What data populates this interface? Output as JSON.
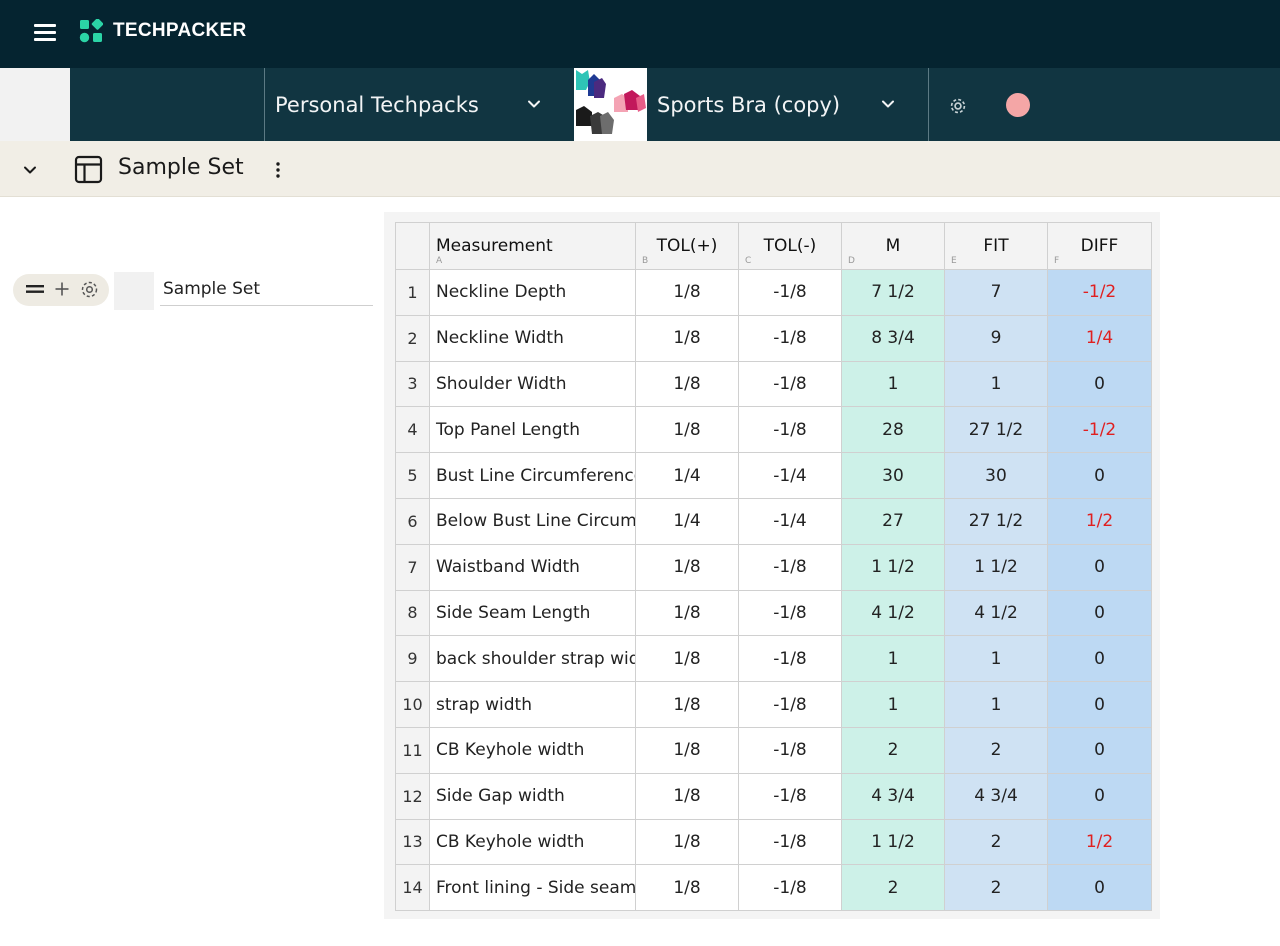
{
  "app": {
    "brand": "TECHPACKER"
  },
  "breadcrumb": {
    "workspace": "Personal Techpacks",
    "product": "Sports Bra (copy)"
  },
  "section": {
    "title": "Sample Set"
  },
  "toolbar": {
    "sample_name": "Sample Set"
  },
  "colors": {
    "topbar": "#052430",
    "subbar": "#113541",
    "accent": "#2bd4a6",
    "m_col": "#cdf1e8",
    "fit_col": "#cfe2f3",
    "diff_col": "#bdd9f3",
    "diff_alert": "#e02020",
    "avatar": "#f4a6a6"
  },
  "table": {
    "headers": [
      {
        "label": "Measurement",
        "letter": "A"
      },
      {
        "label": "TOL(+)",
        "letter": "B"
      },
      {
        "label": "TOL(-)",
        "letter": "C"
      },
      {
        "label": "M",
        "letter": "D"
      },
      {
        "label": "FIT",
        "letter": "E"
      },
      {
        "label": "DIFF",
        "letter": "F"
      }
    ],
    "rows": [
      {
        "idx": "1",
        "name": "Neckline Depth",
        "tol_plus": "1/8",
        "tol_minus": "-1/8",
        "m": "7 1/2",
        "fit": "7",
        "diff": "-1/2",
        "alert": true
      },
      {
        "idx": "2",
        "name": "Neckline Width",
        "tol_plus": "1/8",
        "tol_minus": "-1/8",
        "m": "8 3/4",
        "fit": "9",
        "diff": "1/4",
        "alert": true
      },
      {
        "idx": "3",
        "name": "Shoulder Width",
        "tol_plus": "1/8",
        "tol_minus": "-1/8",
        "m": "1",
        "fit": "1",
        "diff": "0",
        "alert": false
      },
      {
        "idx": "4",
        "name": "Top Panel Length",
        "tol_plus": "1/8",
        "tol_minus": "-1/8",
        "m": "28",
        "fit": "27 1/2",
        "diff": "-1/2",
        "alert": true
      },
      {
        "idx": "5",
        "name": "Bust Line Circumference",
        "tol_plus": "1/4",
        "tol_minus": "-1/4",
        "m": "30",
        "fit": "30",
        "diff": "0",
        "alert": false
      },
      {
        "idx": "6",
        "name": "Below Bust Line Circumference",
        "tol_plus": "1/4",
        "tol_minus": "-1/4",
        "m": "27",
        "fit": "27 1/2",
        "diff": "1/2",
        "alert": true
      },
      {
        "idx": "7",
        "name": "Waistband Width",
        "tol_plus": "1/8",
        "tol_minus": "-1/8",
        "m": "1 1/2",
        "fit": "1 1/2",
        "diff": "0",
        "alert": false
      },
      {
        "idx": "8",
        "name": "Side Seam Length",
        "tol_plus": "1/8",
        "tol_minus": "-1/8",
        "m": "4 1/2",
        "fit": "4 1/2",
        "diff": "0",
        "alert": false
      },
      {
        "idx": "9",
        "name": "back shoulder strap width",
        "tol_plus": "1/8",
        "tol_minus": "-1/8",
        "m": "1",
        "fit": "1",
        "diff": "0",
        "alert": false
      },
      {
        "idx": "10",
        "name": "strap width",
        "tol_plus": "1/8",
        "tol_minus": "-1/8",
        "m": "1",
        "fit": "1",
        "diff": "0",
        "alert": false
      },
      {
        "idx": "11",
        "name": "CB Keyhole width",
        "tol_plus": "1/8",
        "tol_minus": "-1/8",
        "m": "2",
        "fit": "2",
        "diff": "0",
        "alert": false
      },
      {
        "idx": "12",
        "name": "Side Gap width",
        "tol_plus": "1/8",
        "tol_minus": "-1/8",
        "m": "4 3/4",
        "fit": "4 3/4",
        "diff": "0",
        "alert": false
      },
      {
        "idx": "13",
        "name": "CB Keyhole width",
        "tol_plus": "1/8",
        "tol_minus": "-1/8",
        "m": "1 1/2",
        "fit": "2",
        "diff": "1/2",
        "alert": true
      },
      {
        "idx": "14",
        "name": "Front lining - Side seam",
        "tol_plus": "1/8",
        "tol_minus": "-1/8",
        "m": "2",
        "fit": "2",
        "diff": "0",
        "alert": false
      }
    ]
  }
}
